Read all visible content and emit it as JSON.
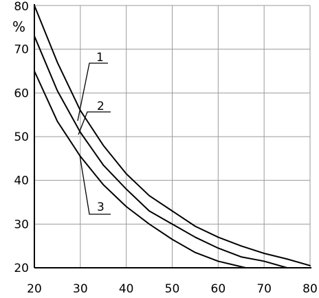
{
  "chart_data": {
    "type": "line",
    "title": "",
    "xlabel": "",
    "ylabel": "%",
    "xlim": [
      20,
      80
    ],
    "ylim": [
      20,
      80
    ],
    "xticks": [
      20,
      30,
      40,
      50,
      60,
      70,
      80
    ],
    "yticks": [
      20,
      30,
      40,
      50,
      60,
      70,
      80
    ],
    "grid": true,
    "series": [
      {
        "name": "1",
        "x": [
          20,
          25,
          30,
          35,
          40,
          45,
          50,
          55,
          60,
          65,
          70,
          75,
          80
        ],
        "y": [
          80,
          67,
          56,
          48,
          41.5,
          36.5,
          33,
          29.5,
          27,
          25,
          23.3,
          22,
          20.5
        ]
      },
      {
        "name": "2",
        "x": [
          20,
          25,
          30,
          35,
          40,
          45,
          50,
          55,
          60,
          65,
          70,
          75
        ],
        "y": [
          73,
          60.5,
          51,
          43.5,
          38,
          33,
          30,
          27,
          24.5,
          22.5,
          21.5,
          20
        ]
      },
      {
        "name": "3",
        "x": [
          20,
          25,
          30,
          35,
          40,
          45,
          50,
          55,
          60,
          66
        ],
        "y": [
          65,
          53.5,
          45.5,
          39,
          34,
          30,
          26.5,
          23.5,
          21.5,
          20
        ]
      }
    ]
  }
}
